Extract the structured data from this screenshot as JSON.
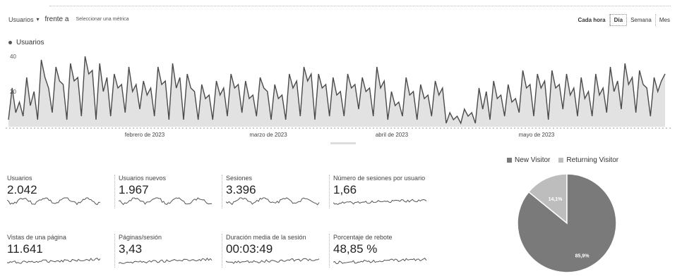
{
  "toolbar": {
    "metric": "Usuarios",
    "vs": "frente a",
    "choose": "Seleccionar una métrica"
  },
  "granularity": [
    "Cada hora",
    "Día",
    "Semana",
    "Mes"
  ],
  "colors": {
    "line": "#4a4a4a",
    "area": "#bfbfbf",
    "new_visitor": "#7a7a7a",
    "returning_visitor": "#bdbdbd"
  },
  "chart_data": [
    {
      "type": "area",
      "series": [
        {
          "name": "Usuarios",
          "values": [
            4,
            22,
            8,
            14,
            6,
            28,
            12,
            20,
            4,
            38,
            28,
            22,
            8,
            34,
            26,
            24,
            4,
            36,
            26,
            28,
            6,
            40,
            30,
            32,
            4,
            36,
            20,
            28,
            6,
            30,
            22,
            24,
            8,
            34,
            20,
            24,
            10,
            26,
            18,
            22,
            6,
            34,
            24,
            26,
            4,
            36,
            22,
            28,
            4,
            30,
            22,
            20,
            4,
            24,
            16,
            18,
            4,
            26,
            18,
            22,
            6,
            30,
            22,
            24,
            8,
            26,
            16,
            18,
            6,
            28,
            22,
            20,
            4,
            24,
            16,
            18,
            4,
            30,
            22,
            26,
            6,
            34,
            26,
            30,
            4,
            30,
            22,
            24,
            6,
            28,
            18,
            20,
            6,
            30,
            22,
            24,
            10,
            28,
            20,
            22,
            6,
            34,
            22,
            26,
            4,
            20,
            12,
            14,
            6,
            28,
            18,
            20,
            4,
            24,
            16,
            18,
            6,
            26,
            18,
            22,
            2,
            8,
            4,
            6,
            2,
            10,
            6,
            8,
            2,
            22,
            10,
            20,
            4,
            26,
            16,
            18,
            6,
            24,
            14,
            16,
            8,
            32,
            22,
            24,
            6,
            30,
            22,
            26,
            4,
            32,
            22,
            24,
            10,
            30,
            18,
            22,
            6,
            28,
            16,
            20,
            6,
            30,
            18,
            22,
            8,
            34,
            20,
            26,
            10,
            36,
            24,
            28,
            8,
            32,
            24,
            22,
            6,
            28,
            20,
            26,
            30
          ]
        }
      ],
      "x_tick_labels": [
        "febrero de 2023",
        "marzo de 2023",
        "abril de 2023",
        "mayo de 2023"
      ],
      "y_tick_labels": [
        "20",
        "40"
      ],
      "ylim": [
        0,
        44
      ],
      "grid": false,
      "legend": "top-left"
    },
    {
      "type": "pie",
      "categories": [
        "New Visitor",
        "Returning Visitor"
      ],
      "values": [
        85.9,
        14.1
      ],
      "labels": [
        "85,9%",
        "14,1%"
      ],
      "legend": "top"
    }
  ],
  "metrics": [
    {
      "label": "Usuarios",
      "value": "2.042"
    },
    {
      "label": "Usuarios nuevos",
      "value": "1.967"
    },
    {
      "label": "Sesiones",
      "value": "3.396"
    },
    {
      "label": "Número de sesiones por usuario",
      "value": "1,66"
    },
    {
      "label": "Vistas de una página",
      "value": "11.641"
    },
    {
      "label": "Páginas/sesión",
      "value": "3,43"
    },
    {
      "label": "Duración media de la sesión",
      "value": "00:03:49"
    },
    {
      "label": "Porcentaje de rebote",
      "value": "48,85 %"
    }
  ]
}
